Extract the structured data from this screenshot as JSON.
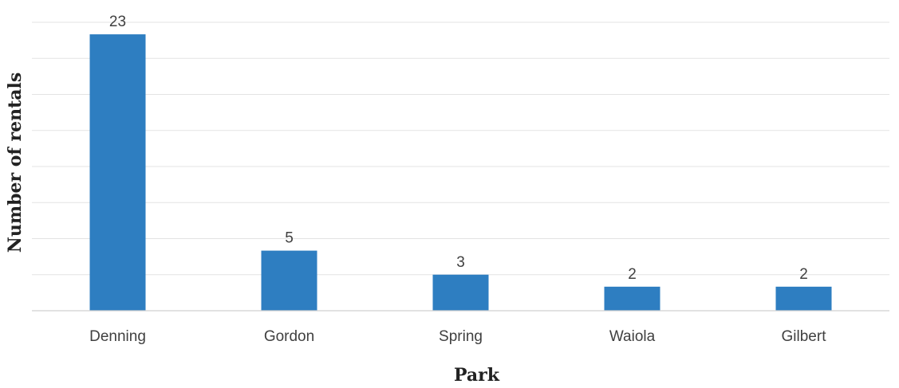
{
  "chart_data": {
    "type": "bar",
    "title": "",
    "xlabel": "Park",
    "ylabel": "Number of rentals",
    "categories": [
      "Denning",
      "Gordon",
      "Spring",
      "Waiola",
      "Gilbert"
    ],
    "values": [
      23,
      5,
      3,
      2,
      2
    ],
    "data_labels": [
      "23",
      "5",
      "3",
      "2",
      "2"
    ],
    "ylim": [
      0,
      24
    ],
    "grid": true,
    "legend": "none",
    "bar_color": "#2e7ec1"
  }
}
